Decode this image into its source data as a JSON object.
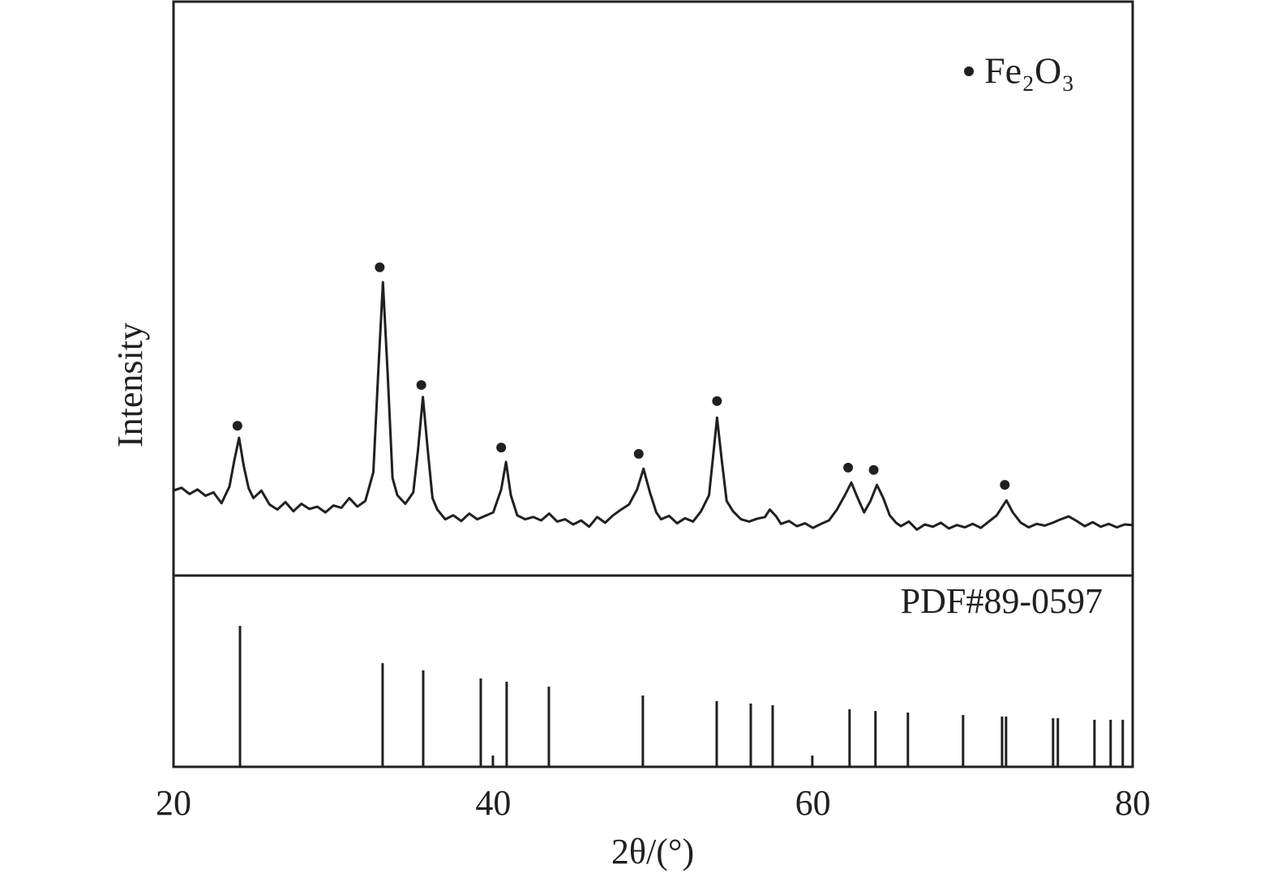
{
  "chart_data": [
    {
      "type": "line",
      "ylabel": "Intensity",
      "xlim": [
        20,
        80
      ],
      "ylim": [
        0,
        100
      ],
      "pattern": {
        "color": "#231f20",
        "x": [
          20,
          20.5,
          21,
          21.5,
          22,
          22.5,
          23,
          23.5,
          23.8,
          24.1,
          24.4,
          24.7,
          25,
          25.5,
          26,
          26.5,
          27,
          27.5,
          28,
          28.5,
          29,
          29.5,
          30,
          30.5,
          31,
          31.5,
          32,
          32.5,
          32.8,
          33.1,
          33.4,
          33.7,
          34,
          34.5,
          35,
          35.3,
          35.6,
          35.9,
          36.2,
          36.5,
          37,
          37.5,
          38,
          38.5,
          39,
          39.5,
          40,
          40.5,
          40.8,
          41.1,
          41.5,
          42,
          42.5,
          43,
          43.5,
          44,
          44.5,
          45,
          45.5,
          46,
          46.5,
          47,
          47.5,
          48,
          48.5,
          49,
          49.4,
          49.8,
          50.2,
          50.5,
          51,
          51.5,
          52,
          52.5,
          53,
          53.5,
          53.8,
          54.0,
          54.3,
          54.6,
          55,
          55.5,
          56,
          56.5,
          57,
          57.3,
          57.7,
          58,
          58.5,
          59,
          59.5,
          60,
          60.5,
          61,
          61.5,
          62,
          62.4,
          62.8,
          63.2,
          63.6,
          64,
          64.4,
          64.8,
          65.2,
          65.5,
          66,
          66.5,
          67,
          67.5,
          68,
          68.5,
          69,
          69.5,
          70,
          70.5,
          71,
          71.5,
          72.1,
          72.5,
          73,
          73.5,
          74,
          74.5,
          75,
          75.5,
          76,
          76.5,
          77,
          77.5,
          78,
          78.5,
          79,
          79.5,
          80
        ],
        "values": [
          14.8,
          15.3,
          14.2,
          15.0,
          13.9,
          14.5,
          12.6,
          15.5,
          20,
          24,
          19,
          15.2,
          13.5,
          14.8,
          12.4,
          11.5,
          12.8,
          11.2,
          12.5,
          11.6,
          12.0,
          11.0,
          12.2,
          11.8,
          13.5,
          12.0,
          13.0,
          18,
          35,
          51.1,
          35,
          17,
          14.0,
          12.5,
          14.5,
          22,
          31.1,
          22,
          13.5,
          11.5,
          9.8,
          10.5,
          9.5,
          10.8,
          9.8,
          10.4,
          11.0,
          15,
          19.8,
          14,
          10.5,
          9.8,
          10.2,
          9.6,
          10.8,
          9.4,
          9.8,
          8.9,
          9.6,
          8.5,
          10.2,
          9.2,
          10.5,
          11.5,
          12.4,
          15,
          18.6,
          14.5,
          11.0,
          9.8,
          10.4,
          9.1,
          10.0,
          9.4,
          11.2,
          14,
          22,
          27.5,
          20,
          13,
          11.2,
          9.8,
          9.4,
          9.9,
          10.2,
          11.5,
          10.3,
          9.0,
          9.5,
          8.6,
          9.1,
          8.3,
          9.0,
          9.6,
          11.5,
          14,
          16.2,
          13.5,
          11.0,
          13,
          15.8,
          13.5,
          10.5,
          9.2,
          8.6,
          9.4,
          8.0,
          8.9,
          8.5,
          9.2,
          8.2,
          8.8,
          8.4,
          9.0,
          8.3,
          9.4,
          10.5,
          13.1,
          11.0,
          9.2,
          8.4,
          9.0,
          8.7,
          9.2,
          9.8,
          10.3,
          9.5,
          8.6,
          9.3,
          8.5,
          9.0,
          8.4,
          8.9,
          8.8
        ]
      },
      "series": [
        {
          "name": "Fe₂O₃",
          "color": "#231f20",
          "x": [
            24.0,
            32.9,
            35.5,
            40.5,
            49.1,
            54.0,
            62.2,
            63.8,
            72.0
          ],
          "values": [
            26.1,
            53.7,
            33.2,
            22.3,
            21.2,
            30.4,
            18.8,
            18.4,
            15.8
          ]
        }
      ]
    },
    {
      "type": "stem",
      "label": "PDF#89-0597",
      "xlabel": "2θ/(°)",
      "xlim": [
        20,
        80
      ],
      "ylim": [
        0,
        100
      ],
      "xticks": [
        20,
        40,
        60,
        80
      ],
      "color": "#231f20",
      "x": [
        24.16,
        33.08,
        35.62,
        39.22,
        39.98,
        40.84,
        43.48,
        49.36,
        53.98,
        56.11,
        57.48,
        59.96,
        62.29,
        63.91,
        65.94,
        69.39,
        71.83,
        72.08,
        75.02,
        75.32,
        77.61,
        78.62,
        79.38
      ],
      "values": [
        73.7,
        54.2,
        50.4,
        46.2,
        5.9,
        44.5,
        41.9,
        37.3,
        34.3,
        33.1,
        32.2,
        5.9,
        30.1,
        29.2,
        28.4,
        27.1,
        26.3,
        26.3,
        25.4,
        25.4,
        24.6,
        24.6,
        24.6
      ]
    }
  ]
}
